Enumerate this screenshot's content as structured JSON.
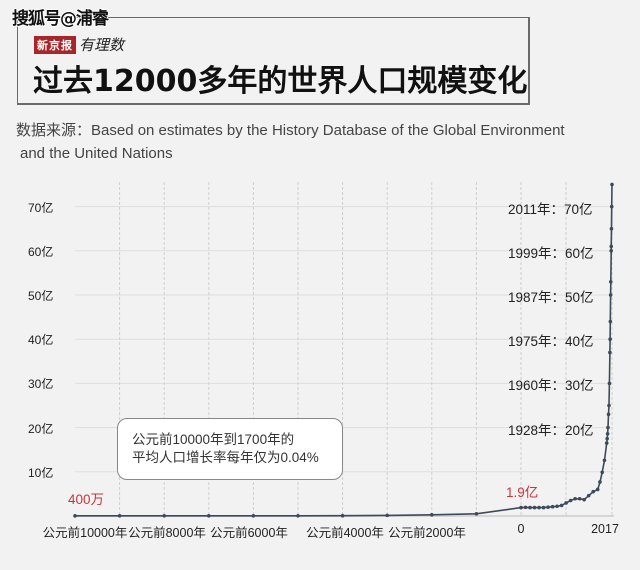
{
  "watermark": "搜狐号@浦睿",
  "brand": {
    "badge": "新京报",
    "script": "有理数"
  },
  "title": "过去12000多年的世界人口规模变化",
  "source": {
    "line1": "数据来源：Based on estimates by the History Database of the Global Environment",
    "line2": "and the United Nations"
  },
  "callout": {
    "line1": "公元前10000年到1700年的",
    "line2": "平均人口增长率每年仅为0.04%"
  },
  "annotations": {
    "start": "400万",
    "year0": "1.9亿"
  },
  "milestones": [
    {
      "label": "2011年：70亿",
      "year": 2011,
      "value": 7000000000
    },
    {
      "label": "1999年：60亿",
      "year": 1999,
      "value": 6000000000
    },
    {
      "label": "1987年：50亿",
      "year": 1987,
      "value": 5000000000
    },
    {
      "label": "1975年：40亿",
      "year": 1975,
      "value": 4000000000
    },
    {
      "label": "1960年：30亿",
      "year": 1960,
      "value": 3000000000
    },
    {
      "label": "1928年：20亿",
      "year": 1928,
      "value": 2000000000
    }
  ],
  "colors": {
    "line": "#3d4a5c",
    "accent_red": "#c9363a",
    "brand_red": "#a8262a",
    "background": "#f2f2f2",
    "grid": "#d8d8d8"
  },
  "chart_data": {
    "type": "line",
    "title": "过去12000多年的世界人口规模变化",
    "subtitle": "数据来源：Based on estimates by the History Database of the Global Environment and the United Nations",
    "xlabel": "",
    "ylabel": "",
    "y_tick_labels": [
      "10亿",
      "20亿",
      "30亿",
      "40亿",
      "50亿",
      "60亿",
      "70亿"
    ],
    "y_ticks": [
      1000000000,
      2000000000,
      3000000000,
      4000000000,
      5000000000,
      6000000000,
      7000000000
    ],
    "ylim": [
      0,
      7600000000
    ],
    "x_tick_labels": [
      "公元前10000年",
      "公元前8000年",
      "公元前6000年",
      "公元前4000年",
      "公元前2000年",
      "0",
      "2017"
    ],
    "x_ticks": [
      -10000,
      -8000,
      -6000,
      -4000,
      -2000,
      0,
      2017
    ],
    "grid": true,
    "legend": null,
    "series": [
      {
        "name": "世界人口",
        "x": [
          -10000,
          -9000,
          -8000,
          -7000,
          -6000,
          -5000,
          -4000,
          -3000,
          -2000,
          -1000,
          0,
          100,
          200,
          300,
          400,
          500,
          600,
          700,
          800,
          900,
          1000,
          1100,
          1200,
          1300,
          1400,
          1500,
          1600,
          1700,
          1750,
          1800,
          1850,
          1900,
          1910,
          1920,
          1928,
          1940,
          1950,
          1960,
          1970,
          1975,
          1980,
          1987,
          1990,
          1999,
          2000,
          2005,
          2011,
          2017
        ],
        "values": [
          4000000,
          5000000,
          5000000,
          5000000,
          5000000,
          5000000,
          7000000,
          14000000,
          27000000,
          50000000,
          190000000,
          195000000,
          190000000,
          190000000,
          190000000,
          190000000,
          200000000,
          210000000,
          220000000,
          240000000,
          295000000,
          350000000,
          390000000,
          390000000,
          370000000,
          460000000,
          550000000,
          600000000,
          770000000,
          990000000,
          1260000000,
          1650000000,
          1750000000,
          1860000000,
          2000000000,
          2300000000,
          2500000000,
          3000000000,
          3700000000,
          4000000000,
          4400000000,
          5000000000,
          5300000000,
          6000000000,
          6100000000,
          6500000000,
          7000000000,
          7500000000
        ]
      }
    ],
    "annotations": [
      {
        "text": "400万",
        "x": -10000,
        "value": 4000000
      },
      {
        "text": "1.9亿",
        "x": 0,
        "value": 190000000
      },
      {
        "text": "公元前10000年到1700年的平均人口增长率每年仅为0.04%"
      }
    ]
  }
}
